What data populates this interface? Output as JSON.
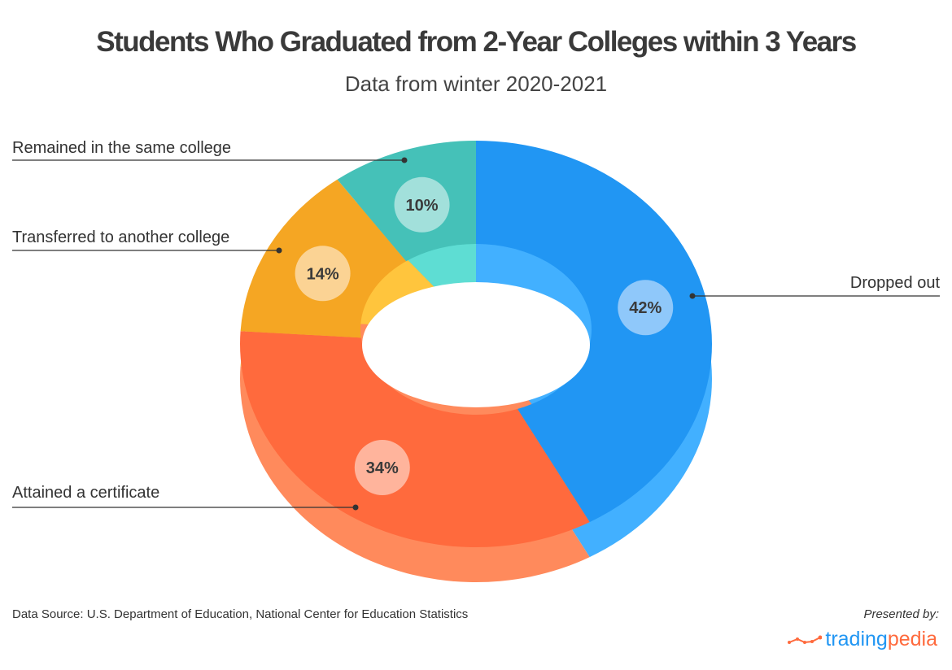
{
  "chart_data": {
    "type": "pie",
    "donut": true,
    "title": "Students Who Graduated from 2-Year Colleges within 3 Years",
    "subtitle": "Data from winter 2020-2021",
    "categories": [
      "Dropped out",
      "Attained a certificate",
      "Transferred to another college",
      "Remained in the same college"
    ],
    "values": [
      42,
      34,
      14,
      10
    ],
    "data_labels": [
      "42%",
      "34%",
      "14%",
      "10%"
    ],
    "colors": [
      "#2196F3",
      "#FF6A3D",
      "#F5A623",
      "#45C1B8"
    ],
    "legend": "leader-line labels"
  },
  "footer": {
    "source": "Data Source: U.S. Department of Education, National Center for Education Statistics",
    "presented_by": "Presented by:",
    "logo_part1": "trading",
    "logo_part2": "pedia"
  }
}
